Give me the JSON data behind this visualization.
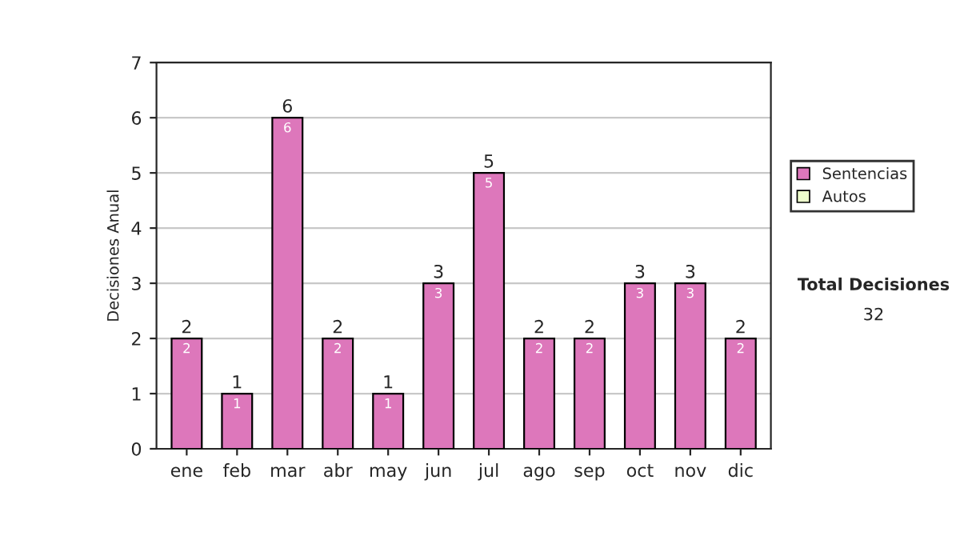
{
  "chart_data": {
    "type": "bar",
    "stacked": true,
    "ylabel": "Decisiones Anual",
    "categories": [
      "ene",
      "feb",
      "mar",
      "abr",
      "may",
      "jun",
      "jul",
      "ago",
      "sep",
      "oct",
      "nov",
      "dic"
    ],
    "series": [
      {
        "name": "Sentencias",
        "color": "#dd77bb",
        "values": [
          2,
          1,
          6,
          2,
          1,
          3,
          5,
          2,
          2,
          3,
          3,
          2
        ],
        "value_labels": [
          "2",
          "1",
          "6",
          "2",
          "1",
          "3",
          "5",
          "2",
          "2",
          "3",
          "3",
          "2"
        ]
      },
      {
        "name": "Autos",
        "color": "#eeffcc",
        "values": [
          null,
          null,
          null,
          null,
          null,
          null,
          null,
          null,
          null,
          null,
          null,
          null
        ]
      }
    ],
    "totals": [
      "2",
      "1",
      "6",
      "2",
      "1",
      "3",
      "5",
      "2",
      "2",
      "3",
      "3",
      "2"
    ],
    "ylim": [
      0,
      7
    ],
    "yticks": [
      0,
      1,
      2,
      3,
      4,
      5,
      6,
      7
    ],
    "grid": "y",
    "legend": "right",
    "annotations": [
      "Total Decisiones",
      "32"
    ]
  }
}
